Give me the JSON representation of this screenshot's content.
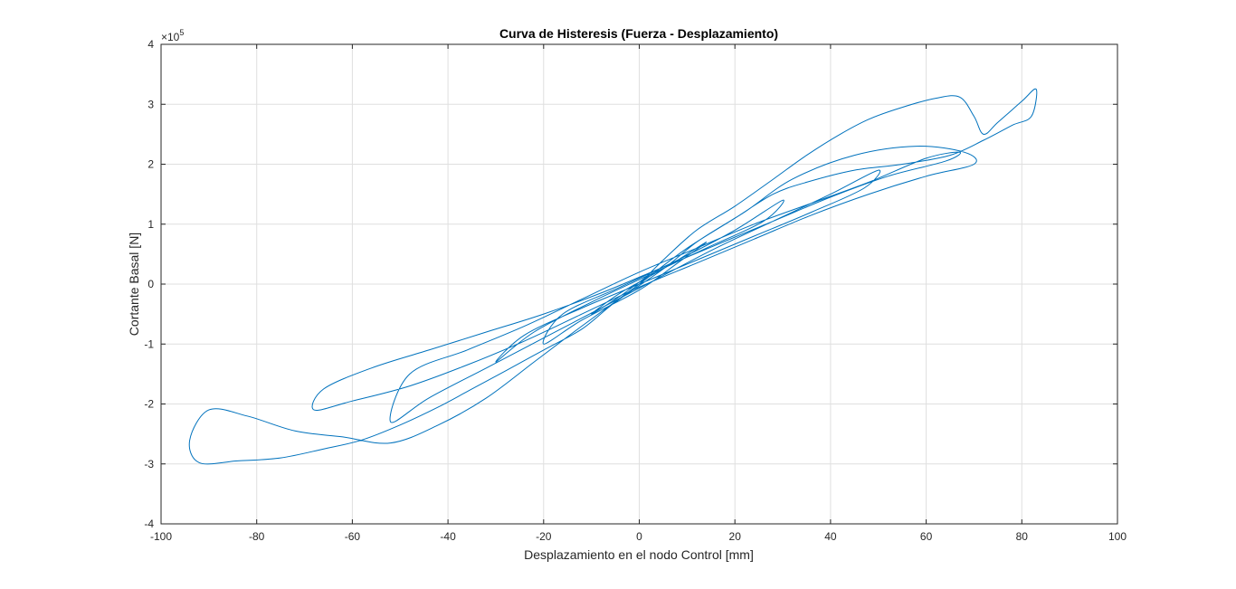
{
  "chart_data": {
    "type": "line",
    "title": "Curva de Histeresis (Fuerza - Desplazamiento)",
    "xlabel": "Desplazamiento en el nodo Control [mm]",
    "ylabel": "Cortante Basal [N]",
    "exponent_label": "×10",
    "exponent_power": "5",
    "xlim": [
      -100,
      100
    ],
    "ylim": [
      -4,
      4
    ],
    "y_scale_factor": 100000,
    "grid": true,
    "series_color": "#0072BD",
    "x_ticks": [
      -100,
      -80,
      -60,
      -40,
      -20,
      0,
      20,
      40,
      60,
      80,
      100
    ],
    "y_ticks": [
      -4,
      -3,
      -2,
      -1,
      0,
      1,
      2,
      3,
      4
    ],
    "x_tick_labels": [
      "-100",
      "-80",
      "-60",
      "-40",
      "-20",
      "0",
      "20",
      "40",
      "60",
      "80",
      "100"
    ],
    "y_tick_labels": [
      "-4",
      "-3",
      "-2",
      "-1",
      "0",
      "1",
      "2",
      "3",
      "4"
    ],
    "series": [
      {
        "x": [
          0,
          5,
          12,
          20,
          28,
          35,
          42,
          48,
          55,
          62,
          67,
          70,
          72,
          75,
          80,
          83,
          82,
          78,
          72,
          65,
          55,
          45,
          35,
          28,
          20,
          12,
          5,
          -5,
          -12,
          -20,
          -28,
          -35,
          -42,
          -50,
          -58,
          -66,
          -75,
          -84,
          -92,
          -94,
          -90,
          -82,
          -72,
          -62,
          -52,
          -42,
          -32,
          -22,
          -12,
          0,
          10,
          22,
          32,
          45,
          58,
          68,
          70,
          60,
          48,
          36,
          24,
          12,
          0,
          -12,
          -24,
          -36,
          -48,
          -60,
          -68,
          -66,
          -56,
          -44,
          -32,
          -20,
          -8,
          4,
          16,
          28,
          40,
          52,
          64,
          67,
          60,
          48,
          36,
          24,
          12,
          0,
          -12,
          -24,
          -36,
          -48,
          -52,
          -44,
          -32,
          -20,
          -8,
          4,
          16,
          28,
          40,
          50,
          47,
          36,
          24,
          12,
          0,
          -12,
          -24,
          -30,
          -22,
          -10,
          2,
          14,
          26,
          30,
          20,
          8,
          -4,
          -16,
          -20,
          -12,
          0,
          8,
          14,
          6,
          -4,
          -10,
          -4,
          2,
          0
        ],
        "y": [
          0.0,
          0.4,
          0.9,
          1.3,
          1.75,
          2.15,
          2.5,
          2.75,
          2.95,
          3.1,
          3.12,
          2.8,
          2.5,
          2.7,
          3.05,
          3.25,
          2.8,
          2.65,
          2.4,
          2.15,
          2.0,
          1.9,
          1.7,
          1.5,
          1.1,
          0.7,
          0.25,
          -0.3,
          -0.75,
          -1.1,
          -1.45,
          -1.75,
          -2.05,
          -2.35,
          -2.6,
          -2.75,
          -2.9,
          -2.95,
          -2.98,
          -2.6,
          -2.1,
          -2.2,
          -2.45,
          -2.55,
          -2.65,
          -2.35,
          -1.9,
          -1.3,
          -0.7,
          0.0,
          0.6,
          1.2,
          1.75,
          2.15,
          2.3,
          2.2,
          2.0,
          1.8,
          1.5,
          1.15,
          0.75,
          0.35,
          -0.05,
          -0.5,
          -0.95,
          -1.35,
          -1.7,
          -1.95,
          -2.1,
          -1.75,
          -1.4,
          -1.1,
          -0.8,
          -0.5,
          -0.15,
          0.25,
          0.65,
          1.05,
          1.45,
          1.8,
          2.05,
          2.2,
          2.1,
          1.7,
          1.35,
          1.0,
          0.6,
          0.2,
          -0.25,
          -0.7,
          -1.1,
          -1.5,
          -2.3,
          -1.9,
          -1.4,
          -0.9,
          -0.4,
          0.1,
          0.6,
          1.05,
          1.5,
          1.9,
          1.6,
          1.2,
          0.8,
          0.4,
          0.0,
          -0.4,
          -0.85,
          -1.3,
          -0.8,
          -0.3,
          0.15,
          0.6,
          1.05,
          1.4,
          0.9,
          0.4,
          -0.05,
          -0.5,
          -1.0,
          -0.6,
          -0.1,
          0.35,
          0.7,
          0.3,
          -0.15,
          -0.5,
          -0.2,
          0.15,
          0.0
        ]
      }
    ]
  }
}
